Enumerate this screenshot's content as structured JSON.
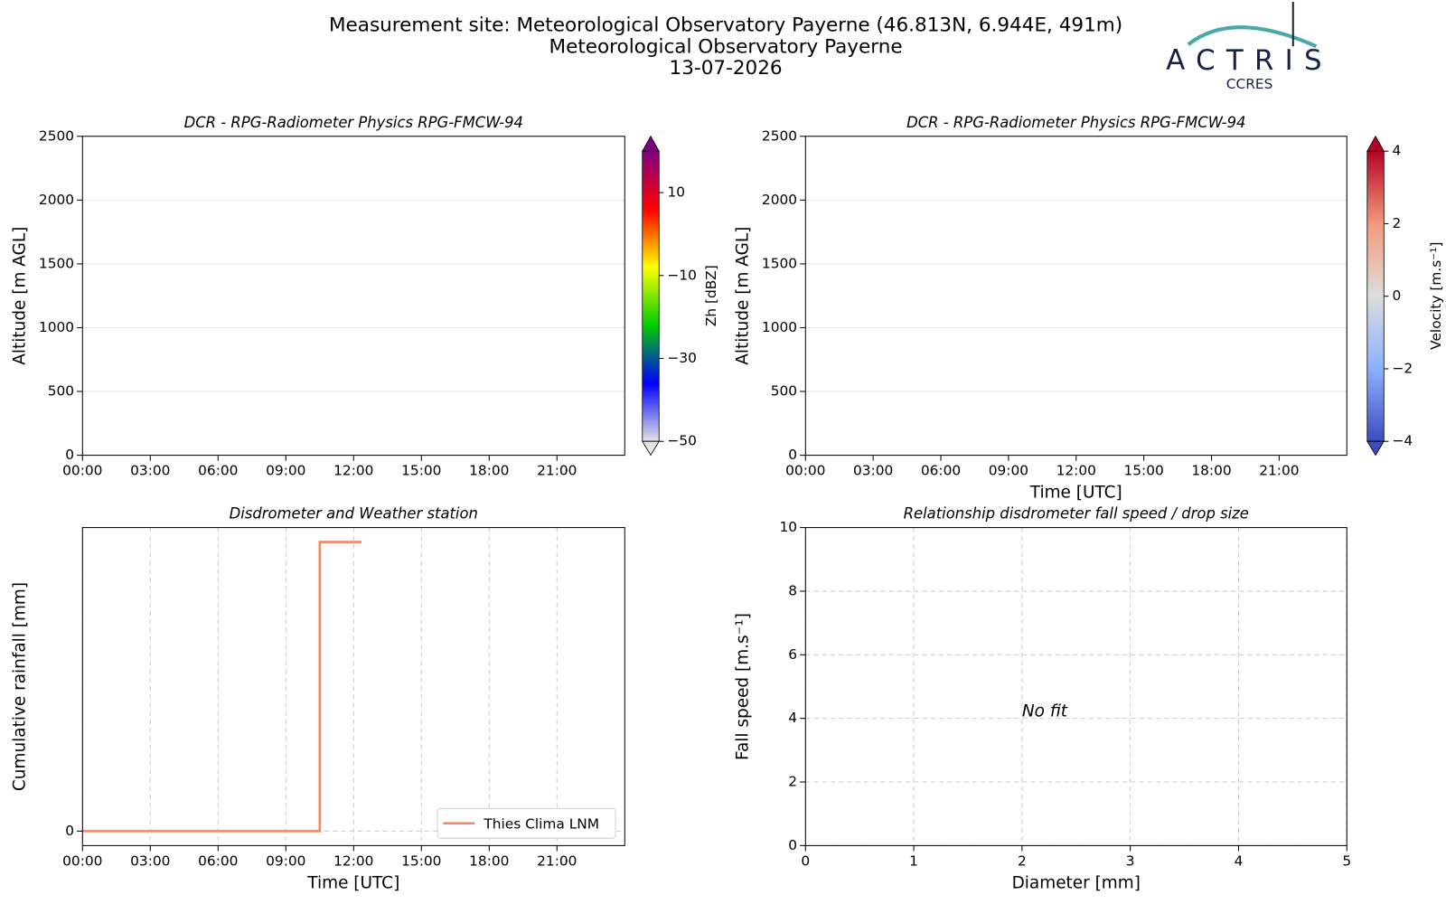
{
  "header": {
    "lines": [
      "Measurement site: Meteorological Observatory Payerne (46.813N, 6.944E, 491m)",
      "Meteorological Observatory Payerne",
      "13-07-2026"
    ]
  },
  "logo": {
    "text": "ACTRIS",
    "subtext": "CCRES"
  },
  "chart_data": [
    {
      "type": "heatmap",
      "title": "DCR - RPG-Radiometer Physics RPG-FMCW-94",
      "ylabel": "Altitude [m AGL]",
      "xlim": [
        0,
        24
      ],
      "xticks": [
        {
          "value": 0,
          "label": "00:00"
        },
        {
          "value": 3,
          "label": "03:00"
        },
        {
          "value": 6,
          "label": "06:00"
        },
        {
          "value": 9,
          "label": "09:00"
        },
        {
          "value": 12,
          "label": "12:00"
        },
        {
          "value": 15,
          "label": "15:00"
        },
        {
          "value": 18,
          "label": "18:00"
        },
        {
          "value": 21,
          "label": "21:00"
        }
      ],
      "ylim": [
        0,
        2500
      ],
      "yticks": [
        0,
        500,
        1000,
        1500,
        2000,
        2500
      ],
      "grid": true,
      "colorbar": {
        "label": "Zh [dBZ]",
        "lim": [
          -50,
          20
        ],
        "ticks": [
          {
            "value": -50,
            "label": "−50"
          },
          {
            "value": -30,
            "label": "−30"
          },
          {
            "value": -10,
            "label": "−10"
          },
          10
        ],
        "colors": [
          "#e4e4e4",
          "#0000ff",
          "#00cc00",
          "#ffff00",
          "#ff0000",
          "#800080"
        ]
      }
    },
    {
      "type": "heatmap",
      "title": "DCR - RPG-Radiometer Physics RPG-FMCW-94",
      "ylabel": "Altitude [m AGL]",
      "xlabel": "Time [UTC]",
      "xlim": [
        0,
        24
      ],
      "xticks": [
        {
          "value": 0,
          "label": "00:00"
        },
        {
          "value": 3,
          "label": "03:00"
        },
        {
          "value": 6,
          "label": "06:00"
        },
        {
          "value": 9,
          "label": "09:00"
        },
        {
          "value": 12,
          "label": "12:00"
        },
        {
          "value": 15,
          "label": "15:00"
        },
        {
          "value": 18,
          "label": "18:00"
        },
        {
          "value": 21,
          "label": "21:00"
        }
      ],
      "ylim": [
        0,
        2500
      ],
      "yticks": [
        0,
        500,
        1000,
        1500,
        2000,
        2500
      ],
      "grid": true,
      "colorbar": {
        "label": "Velocity [m.s⁻¹]",
        "lim": [
          -4,
          4
        ],
        "ticks": [
          {
            "value": -4,
            "label": "−4"
          },
          {
            "value": -2,
            "label": "−2"
          },
          0,
          2,
          4
        ],
        "colors": [
          "#3b4cc0",
          "#8db0fe",
          "#dddddd",
          "#f49a7b",
          "#b40426"
        ]
      }
    },
    {
      "type": "line",
      "title": "Disdrometer and Weather station",
      "ylabel": "Cumulative rainfall [mm]",
      "xlabel": "Time [UTC]",
      "xlim": [
        0,
        24
      ],
      "xticks": [
        {
          "value": 0,
          "label": "00:00"
        },
        {
          "value": 3,
          "label": "03:00"
        },
        {
          "value": 6,
          "label": "06:00"
        },
        {
          "value": 9,
          "label": "09:00"
        },
        {
          "value": 12,
          "label": "12:00"
        },
        {
          "value": 15,
          "label": "15:00"
        },
        {
          "value": 18,
          "label": "18:00"
        },
        {
          "value": 21,
          "label": "21:00"
        }
      ],
      "ylim": [
        -0.05,
        1.05
      ],
      "yticks": [
        0
      ],
      "grid": true,
      "legend": "lower right",
      "x": [
        0,
        10.5,
        10.5,
        12.35
      ],
      "series": [
        {
          "name": "Thies Clima LNM",
          "color": "#ee8866",
          "values": [
            0,
            0,
            1,
            1
          ]
        }
      ]
    },
    {
      "type": "scatter",
      "title": "Relationship disdrometer fall speed / drop size",
      "ylabel": "Fall speed [m.s⁻¹]",
      "xlabel": "Diameter [mm]",
      "xlim": [
        0,
        5
      ],
      "xticks": [
        0,
        1,
        2,
        3,
        4,
        5
      ],
      "ylim": [
        0,
        10
      ],
      "yticks": [
        0,
        2,
        4,
        6,
        8,
        10
      ],
      "grid": true,
      "annotation": "No fit"
    }
  ]
}
